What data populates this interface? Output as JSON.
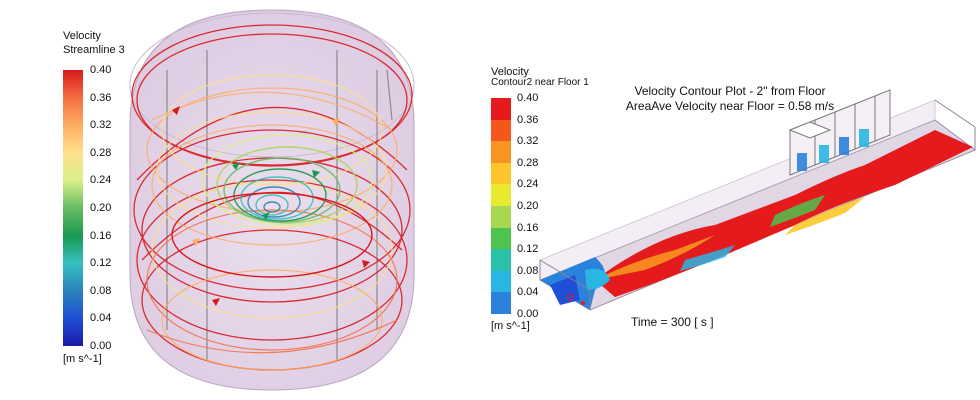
{
  "left_panel": {
    "legend": {
      "variable": "Velocity",
      "object": "Streamline 3",
      "ticks": [
        "0.40",
        "0.36",
        "0.32",
        "0.28",
        "0.24",
        "0.20",
        "0.16",
        "0.12",
        "0.08",
        "0.04",
        "0.00"
      ],
      "unit": "[m s^-1]",
      "colors": [
        "#d7191c",
        "#f46d43",
        "#fdae61",
        "#fee08b",
        "#d9ef8b",
        "#66bd63",
        "#1a9850",
        "#35c0c0",
        "#2b83ba",
        "#1f4fd6",
        "#1a1aa8"
      ]
    }
  },
  "right_panel": {
    "legend": {
      "variable": "Velocity",
      "object": "Contour2 near Floor 1",
      "ticks": [
        "0.40",
        "0.36",
        "0.32",
        "0.28",
        "0.24",
        "0.20",
        "0.16",
        "0.12",
        "0.08",
        "0.04",
        "0.00"
      ],
      "unit": "[m s^-1]",
      "bands": [
        "#e41a1c",
        "#f5561a",
        "#f8941f",
        "#fcc62a",
        "#e9e92f",
        "#a6d854",
        "#4fc34f",
        "#2bc0a8",
        "#29b6e3",
        "#2a82dc",
        "#1f4fd6"
      ]
    },
    "title_line1": "Velocity Contour Plot - 2\" from Floor",
    "title_line2": "AreaAve Velocity near Floor = 0.58 m/s",
    "time_label": "Time = 300 [ s ]"
  }
}
